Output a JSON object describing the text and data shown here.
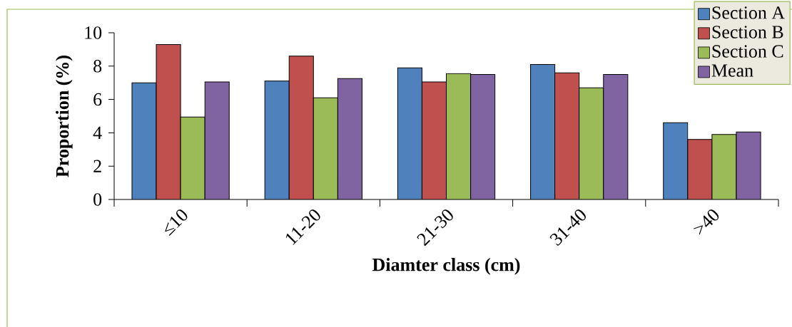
{
  "chart_data": {
    "type": "bar",
    "xlabel": "Diamter class (cm)",
    "ylabel": "Proportion (%)",
    "categories": [
      "≤10",
      "11-20",
      "21-30",
      "31-40",
      ">40"
    ],
    "series": [
      {
        "name": "Section A",
        "color": "#4f81bd",
        "values": [
          7.0,
          7.1,
          7.9,
          8.1,
          4.6
        ]
      },
      {
        "name": "Section B",
        "color": "#c0504d",
        "values": [
          9.3,
          8.6,
          7.05,
          7.6,
          3.6
        ]
      },
      {
        "name": "Section C",
        "color": "#9bbb59",
        "values": [
          4.95,
          6.1,
          7.55,
          6.7,
          3.9
        ]
      },
      {
        "name": "Mean",
        "color": "#8064a2",
        "values": [
          7.05,
          7.25,
          7.5,
          7.5,
          4.05
        ]
      }
    ],
    "ylim": [
      0,
      10
    ],
    "yticks": [
      0,
      2,
      4,
      6,
      8,
      10
    ],
    "grid": false,
    "legend": "top right"
  }
}
